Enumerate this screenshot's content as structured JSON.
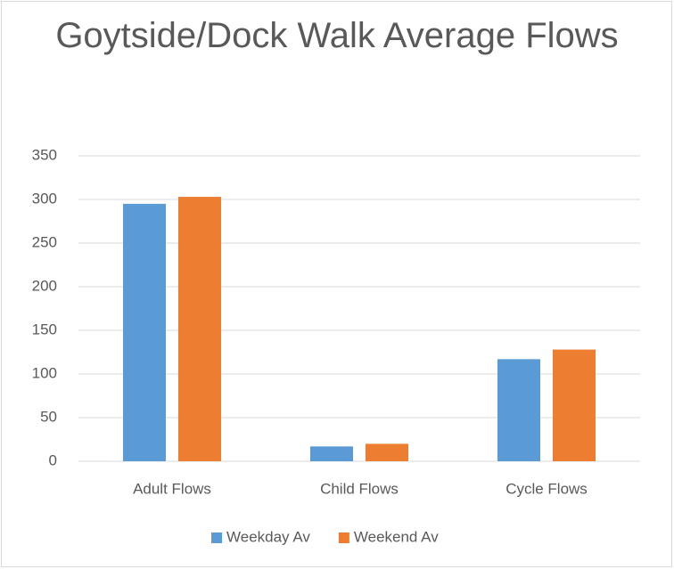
{
  "chart_data": {
    "type": "bar",
    "title": "Goytside/Dock Walk Average Flows",
    "categories": [
      "Adult Flows",
      "Child Flows",
      "Cycle Flows"
    ],
    "series": [
      {
        "name": "Weekday Av",
        "color": "#5b9bd5",
        "values": [
          295,
          17,
          117
        ]
      },
      {
        "name": "Weekend Av",
        "color": "#ed7d31",
        "values": [
          303,
          20,
          128
        ]
      }
    ],
    "ylim": [
      0,
      350
    ],
    "yticks": [
      0,
      50,
      100,
      150,
      200,
      250,
      300,
      350
    ],
    "grid": true,
    "legend": "bottom"
  }
}
